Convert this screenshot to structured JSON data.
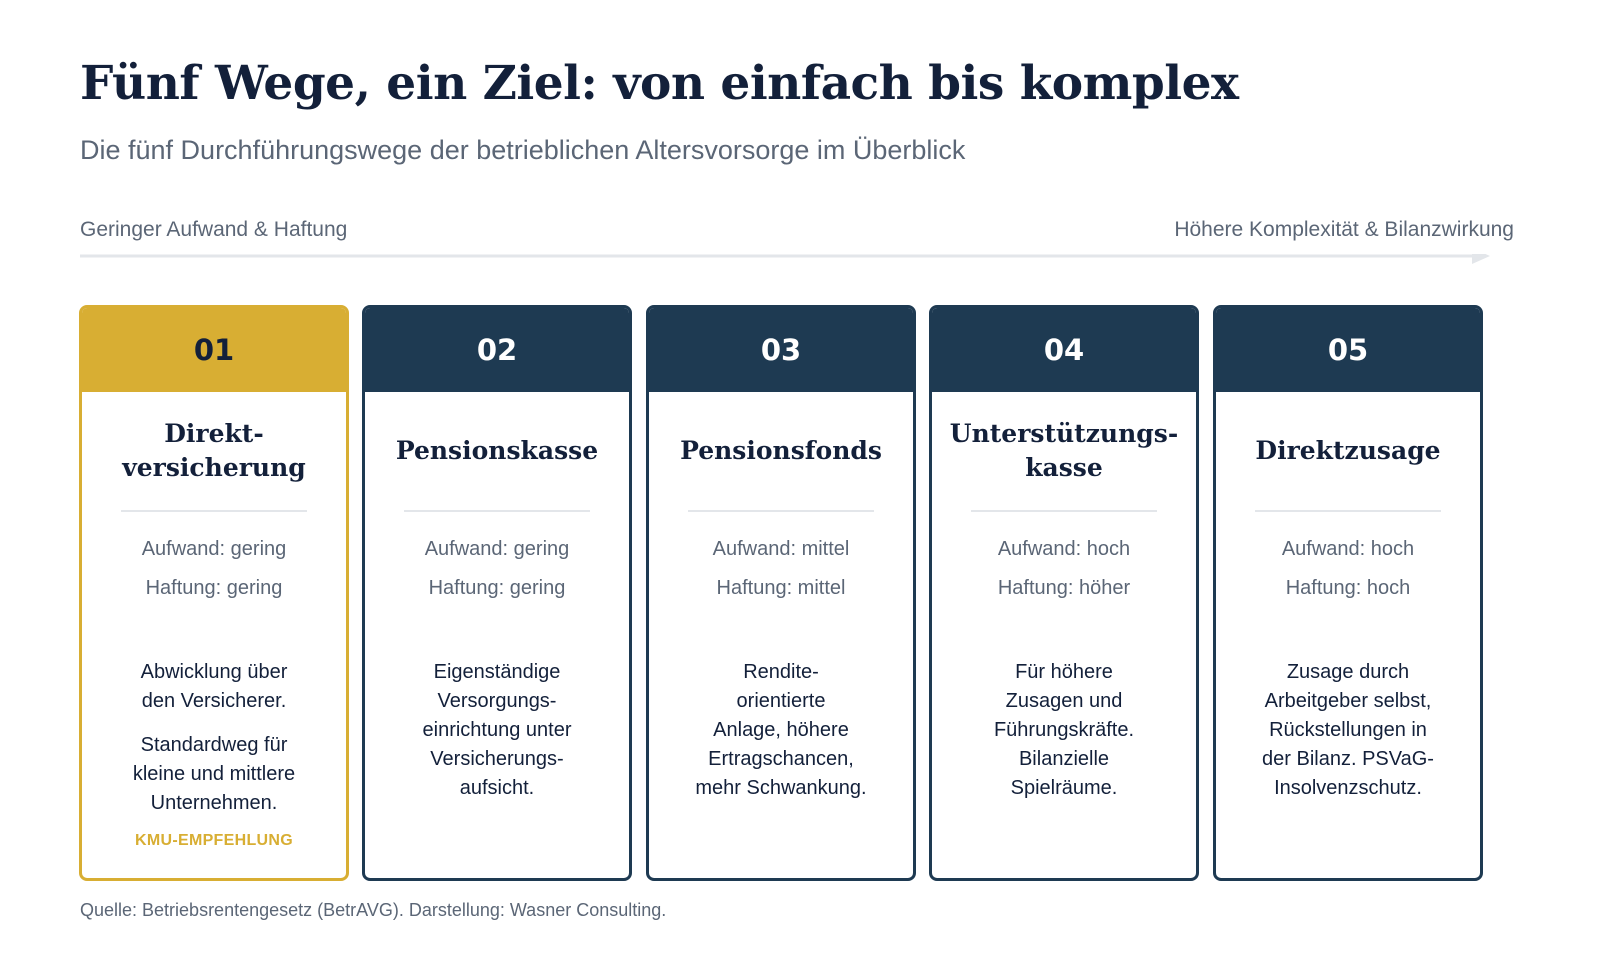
{
  "title": "Fünf Wege, ein Ziel: von einfach bis komplex",
  "subtitle": "Die fünf Durchführungswege der betrieblichen Altersvorsorge im Überblick",
  "axis": {
    "left_label": "Geringer Aufwand & Haftung",
    "right_label": "Höhere Komplexität & Bilanzwirkung"
  },
  "cards": [
    {
      "number": "01",
      "name": "Direkt-\nversicherung",
      "aufwand": "Aufwand: gering",
      "haftung": "Haftung: gering",
      "description": "Abwicklung über\nden Versicherer.",
      "description_2": "Standardweg für\nkleine und mittlere\nUnternehmen.",
      "badge": "KMU-EMPFEHLUNG",
      "highlighted": true
    },
    {
      "number": "02",
      "name": "Pensionskasse",
      "aufwand": "Aufwand: gering",
      "haftung": "Haftung: gering",
      "description": "Eigenständige\nVersorgungs-\neinrichtung unter\nVersicherungs-\naufsicht.",
      "highlighted": false
    },
    {
      "number": "03",
      "name": "Pensionsfonds",
      "aufwand": "Aufwand: mittel",
      "haftung": "Haftung: mittel",
      "description": "Rendite-\norientierte\nAnlage, höhere\nErtragschancen,\nmehr Schwankung.",
      "highlighted": false
    },
    {
      "number": "04",
      "name": "Unterstützungs-\nkasse",
      "aufwand": "Aufwand: hoch",
      "haftung": "Haftung: höher",
      "description": "Für höhere\nZusagen und\nFührungskräfte.\nBilanzielle\nSpielräume.",
      "highlighted": false
    },
    {
      "number": "05",
      "name": "Direktzusage",
      "aufwand": "Aufwand: hoch",
      "haftung": "Haftung: hoch",
      "description": "Zusage durch\nArbeitgeber selbst,\nRückstellungen in\nder Bilanz. PSVaG-\nInsolvenzschutz.",
      "highlighted": false
    }
  ],
  "source": "Quelle: Betriebsrentengesetz (BetrAVG). Darstellung: Wasner Consulting.",
  "colors": {
    "navy": "#1e3a52",
    "gold": "#d8ae33",
    "text_dark": "#13203a",
    "text_muted": "#5b6676",
    "rule": "#e3e6ea"
  }
}
